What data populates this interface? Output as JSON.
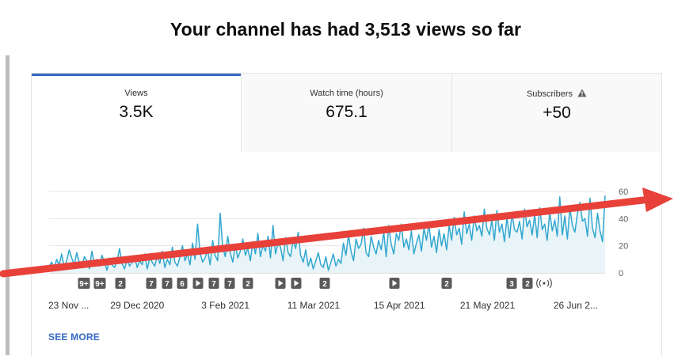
{
  "headline": "Your channel has had 3,513 views so far",
  "tabs": [
    {
      "label": "Views",
      "value": "3.5K",
      "active": true
    },
    {
      "label": "Watch time (hours)",
      "value": "675.1",
      "active": false
    },
    {
      "label": "Subscribers",
      "value": "+50",
      "active": false,
      "icon": "warning-icon"
    }
  ],
  "see_more": "SEE MORE",
  "colors": {
    "line": "#32a7cf",
    "fill": "#e9f4f8",
    "accent": "#3567c5",
    "arrow": "#e8413a",
    "marker": "#5a5a5a"
  },
  "chart_data": {
    "type": "area",
    "y_ticks": [
      "60",
      "40",
      "20",
      "0"
    ],
    "ylim": [
      0,
      60
    ],
    "x_ticks": [
      "23 Nov ...",
      "29 Dec 2020",
      "3 Feb 2021",
      "11 Mar 2021",
      "15 Apr 2021",
      "21 May 2021",
      "26 Jun 2..."
    ],
    "x_range": [
      "2020-11-23",
      "2021-07-08"
    ],
    "values": [
      5,
      8,
      3,
      10,
      6,
      14,
      4,
      9,
      17,
      11,
      6,
      15,
      8,
      4,
      12,
      9,
      3,
      16,
      7,
      10,
      5,
      13,
      8,
      2,
      11,
      6,
      4,
      9,
      18,
      7,
      3,
      10,
      5,
      8,
      12,
      4,
      9,
      6,
      14,
      3,
      11,
      8,
      5,
      13,
      7,
      16,
      4,
      10,
      6,
      19,
      8,
      5,
      12,
      20,
      9,
      14,
      6,
      22,
      10,
      36,
      15,
      8,
      11,
      17,
      6,
      24,
      13,
      9,
      44,
      19,
      12,
      27,
      15,
      8,
      21,
      11,
      16,
      25,
      13,
      18,
      9,
      23,
      14,
      29,
      12,
      20,
      16,
      27,
      11,
      35,
      14,
      22,
      19,
      9,
      26,
      15,
      12,
      24,
      18,
      30,
      13,
      8,
      17,
      5,
      11,
      3,
      9,
      15,
      6,
      4,
      12,
      2,
      8,
      14,
      5,
      10,
      7,
      22,
      13,
      28,
      16,
      9,
      25,
      18,
      21,
      33,
      15,
      12,
      27,
      19,
      14,
      24,
      17,
      30,
      12,
      35,
      21,
      14,
      29,
      24,
      36,
      19,
      25,
      17,
      31,
      14,
      22,
      28,
      16,
      33,
      24,
      36,
      19,
      27,
      15,
      32,
      20,
      29,
      17,
      35,
      24,
      41,
      28,
      33,
      21,
      45,
      29,
      36,
      24,
      42,
      31,
      35,
      27,
      47,
      33,
      28,
      39,
      24,
      46,
      30,
      36,
      23,
      41,
      26,
      44,
      32,
      30,
      38,
      25,
      47,
      34,
      39,
      28,
      43,
      26,
      48,
      32,
      36,
      24,
      45,
      31,
      39,
      27,
      56,
      28,
      42,
      25,
      48,
      35,
      30,
      44,
      52,
      38,
      40,
      27,
      55,
      33,
      26,
      44,
      31,
      23,
      57
    ]
  },
  "event_markers": [
    {
      "label": "9+",
      "kind": "text"
    },
    {
      "label": "9+",
      "kind": "text"
    },
    {
      "label": "2",
      "kind": "text"
    },
    {
      "label": "7",
      "kind": "text"
    },
    {
      "label": "7",
      "kind": "text"
    },
    {
      "label": "6",
      "kind": "text"
    },
    {
      "label": "",
      "kind": "play-icon"
    },
    {
      "label": "7",
      "kind": "text"
    },
    {
      "label": "7",
      "kind": "text"
    },
    {
      "label": "2",
      "kind": "text"
    },
    {
      "label": "",
      "kind": "play-icon"
    },
    {
      "label": "",
      "kind": "play-icon"
    },
    {
      "label": "2",
      "kind": "text"
    },
    {
      "label": "",
      "kind": "play-icon"
    },
    {
      "label": "2",
      "kind": "text"
    },
    {
      "label": "3",
      "kind": "text"
    },
    {
      "label": "2",
      "kind": "text"
    },
    {
      "label": "",
      "kind": "live-icon"
    }
  ]
}
